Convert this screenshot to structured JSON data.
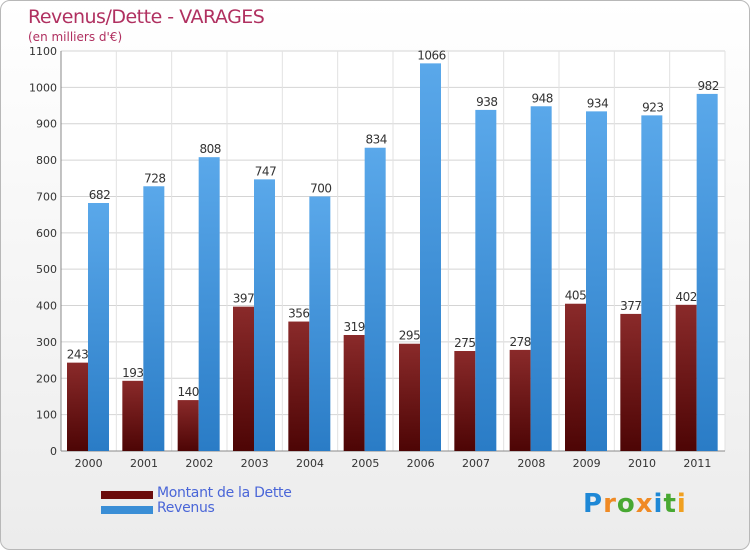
{
  "header": {
    "title": "Revenus/Dette - VARAGES",
    "subtitle": "(en milliers d'€)"
  },
  "chart_data": {
    "type": "bar",
    "title": "Revenus/Dette - VARAGES",
    "subtitle": "(en milliers d'€)",
    "categories": [
      "2000",
      "2001",
      "2002",
      "2003",
      "2004",
      "2005",
      "2006",
      "2007",
      "2008",
      "2009",
      "2010",
      "2011"
    ],
    "series": [
      {
        "name": "Montant de la Dette",
        "color": "#7a1a1a",
        "values": [
          243,
          193,
          140,
          397,
          356,
          319,
          295,
          275,
          278,
          405,
          377,
          402
        ]
      },
      {
        "name": "Revenus",
        "color": "#3d8fd8",
        "values": [
          682,
          728,
          808,
          747,
          700,
          834,
          1066,
          938,
          948,
          934,
          923,
          982
        ]
      }
    ],
    "ylim": [
      0,
      1100
    ],
    "yticks": [
      0,
      100,
      200,
      300,
      400,
      500,
      600,
      700,
      800,
      900,
      1000,
      1100
    ],
    "grid": true,
    "legend_position": "bottom-left"
  },
  "legend": {
    "items": [
      {
        "label": "Montant de la Dette",
        "color": "#6b0c0c"
      },
      {
        "label": "Revenus",
        "color": "#3a8ed6"
      }
    ]
  },
  "logo": {
    "letters": [
      {
        "ch": "P",
        "color": "#1e88d6"
      },
      {
        "ch": "r",
        "color": "#f08a24"
      },
      {
        "ch": "o",
        "color": "#48a832"
      },
      {
        "ch": "x",
        "color": "#f08a24"
      },
      {
        "ch": "i",
        "color": "#1e88d6"
      },
      {
        "ch": "t",
        "color": "#48a832"
      },
      {
        "ch": "i",
        "color": "#f0a020"
      }
    ]
  }
}
